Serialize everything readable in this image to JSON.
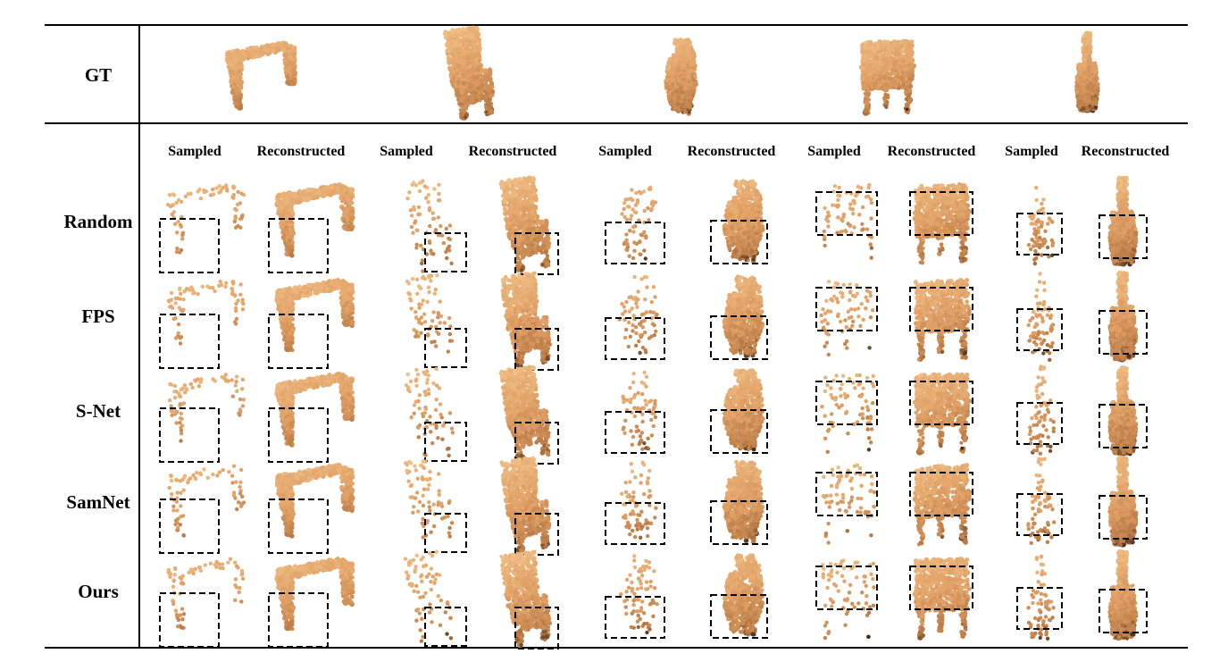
{
  "figure": {
    "gt_label": "GT",
    "row_labels": [
      "Random",
      "FPS",
      "S-Net",
      "SamNet",
      "Ours"
    ],
    "column_groups": [
      {
        "object": "table",
        "sampled_label": "Sampled",
        "reconstructed_label": "Reconstructed"
      },
      {
        "object": "chair",
        "sampled_label": "Sampled",
        "reconstructed_label": "Reconstructed"
      },
      {
        "object": "bag",
        "sampled_label": "Sampled",
        "reconstructed_label": "Reconstructed"
      },
      {
        "object": "armchair",
        "sampled_label": "Sampled",
        "reconstructed_label": "Reconstructed"
      },
      {
        "object": "guitar",
        "sampled_label": "Sampled",
        "reconstructed_label": "Reconstructed"
      }
    ],
    "colors": {
      "point_light": "#f3c58c",
      "point_mid": "#e0a066",
      "point_dark": "#b97a45",
      "point_shadow": "#3a2a1c",
      "rule": "#000000",
      "highlight_box": "#000000"
    }
  }
}
